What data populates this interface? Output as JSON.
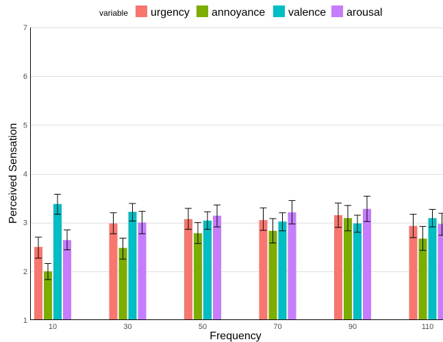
{
  "chart_data": {
    "type": "bar",
    "title": "",
    "xlabel": "Frequency",
    "ylabel": "Perceived Sensation",
    "ylim": [
      1,
      7
    ],
    "yticks": [
      "1",
      "2",
      "3",
      "4",
      "5",
      "6",
      "7"
    ],
    "grid": true,
    "legend_position": "top",
    "legend_title": "variable",
    "categories": [
      "10",
      "30",
      "50",
      "70",
      "90",
      "110"
    ],
    "series": [
      {
        "name": "urgency",
        "color": "#F8766D",
        "values": [
          2.5,
          2.98,
          3.07,
          3.05,
          3.15,
          2.93
        ],
        "err_low": [
          2.27,
          2.77,
          2.86,
          2.84,
          2.9,
          2.69
        ],
        "err_high": [
          2.7,
          3.2,
          3.29,
          3.3,
          3.4,
          3.17
        ]
      },
      {
        "name": "annoyance",
        "color": "#7CAE00",
        "values": [
          2.0,
          2.48,
          2.78,
          2.83,
          3.09,
          2.67
        ],
        "err_low": [
          1.83,
          2.25,
          2.57,
          2.58,
          2.83,
          2.43
        ],
        "err_high": [
          2.16,
          2.68,
          3.0,
          3.08,
          3.35,
          2.92
        ]
      },
      {
        "name": "valence",
        "color": "#00BFC4",
        "values": [
          3.38,
          3.22,
          3.04,
          3.02,
          2.98,
          3.09
        ],
        "err_low": [
          3.17,
          3.03,
          2.86,
          2.83,
          2.8,
          2.91
        ],
        "err_high": [
          3.58,
          3.39,
          3.22,
          3.2,
          3.15,
          3.27
        ]
      },
      {
        "name": "arousal",
        "color": "#C77CFF",
        "values": [
          2.64,
          3.0,
          3.14,
          3.21,
          3.28,
          2.97
        ],
        "err_low": [
          2.44,
          2.77,
          2.91,
          2.97,
          3.02,
          2.74
        ],
        "err_high": [
          2.85,
          3.23,
          3.36,
          3.45,
          3.54,
          3.19
        ]
      }
    ]
  }
}
